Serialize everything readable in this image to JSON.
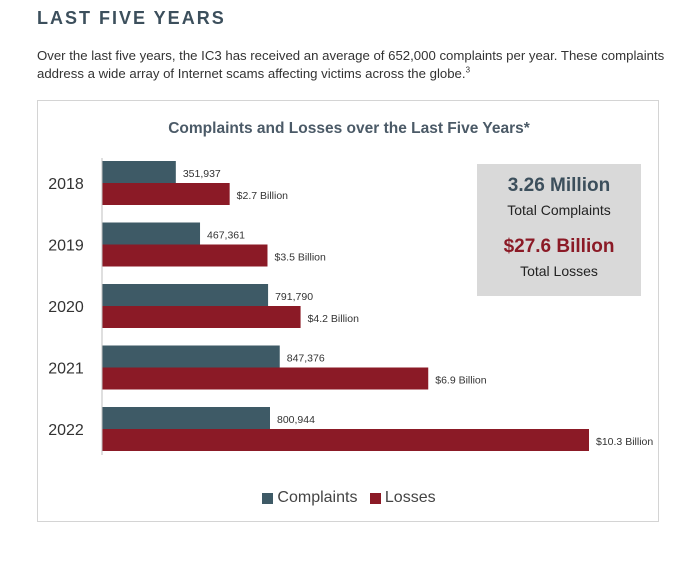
{
  "section": {
    "title": "LAST FIVE YEARS",
    "intro": "Over the last five years, the IC3 has received an average of 652,000 complaints per year. These complaints address a wide array of Internet scams affecting victims across the globe.",
    "footnote_marker": "3"
  },
  "summary": {
    "complaints_value": "3.26 Million",
    "complaints_label": "Total Complaints",
    "losses_value": "$27.6 Billion",
    "losses_label": "Total Losses"
  },
  "colors": {
    "complaints": "#3e5a66",
    "losses": "#8b1a26",
    "title": "#3c4f5c",
    "box_bg": "#d9d9d9"
  },
  "chart_data": {
    "type": "bar",
    "orientation": "horizontal",
    "title": "Complaints and Losses over the Last Five Years*",
    "categories": [
      "2018",
      "2019",
      "2020",
      "2021",
      "2022"
    ],
    "series": [
      {
        "name": "Complaints",
        "values": [
          351937,
          467361,
          791790,
          847376,
          800944
        ],
        "labels": [
          "351,937",
          "467,361",
          "791,790",
          "847,376",
          "800,944"
        ]
      },
      {
        "name": "Losses",
        "values": [
          2.7,
          3.5,
          4.2,
          6.9,
          10.3
        ],
        "labels": [
          "$2.7 Billion",
          "$3.5 Billion",
          "$4.2 Billion",
          "$6.9 Billion",
          "$10.3 Billion"
        ]
      }
    ],
    "legend_position": "bottom",
    "grid": false
  }
}
